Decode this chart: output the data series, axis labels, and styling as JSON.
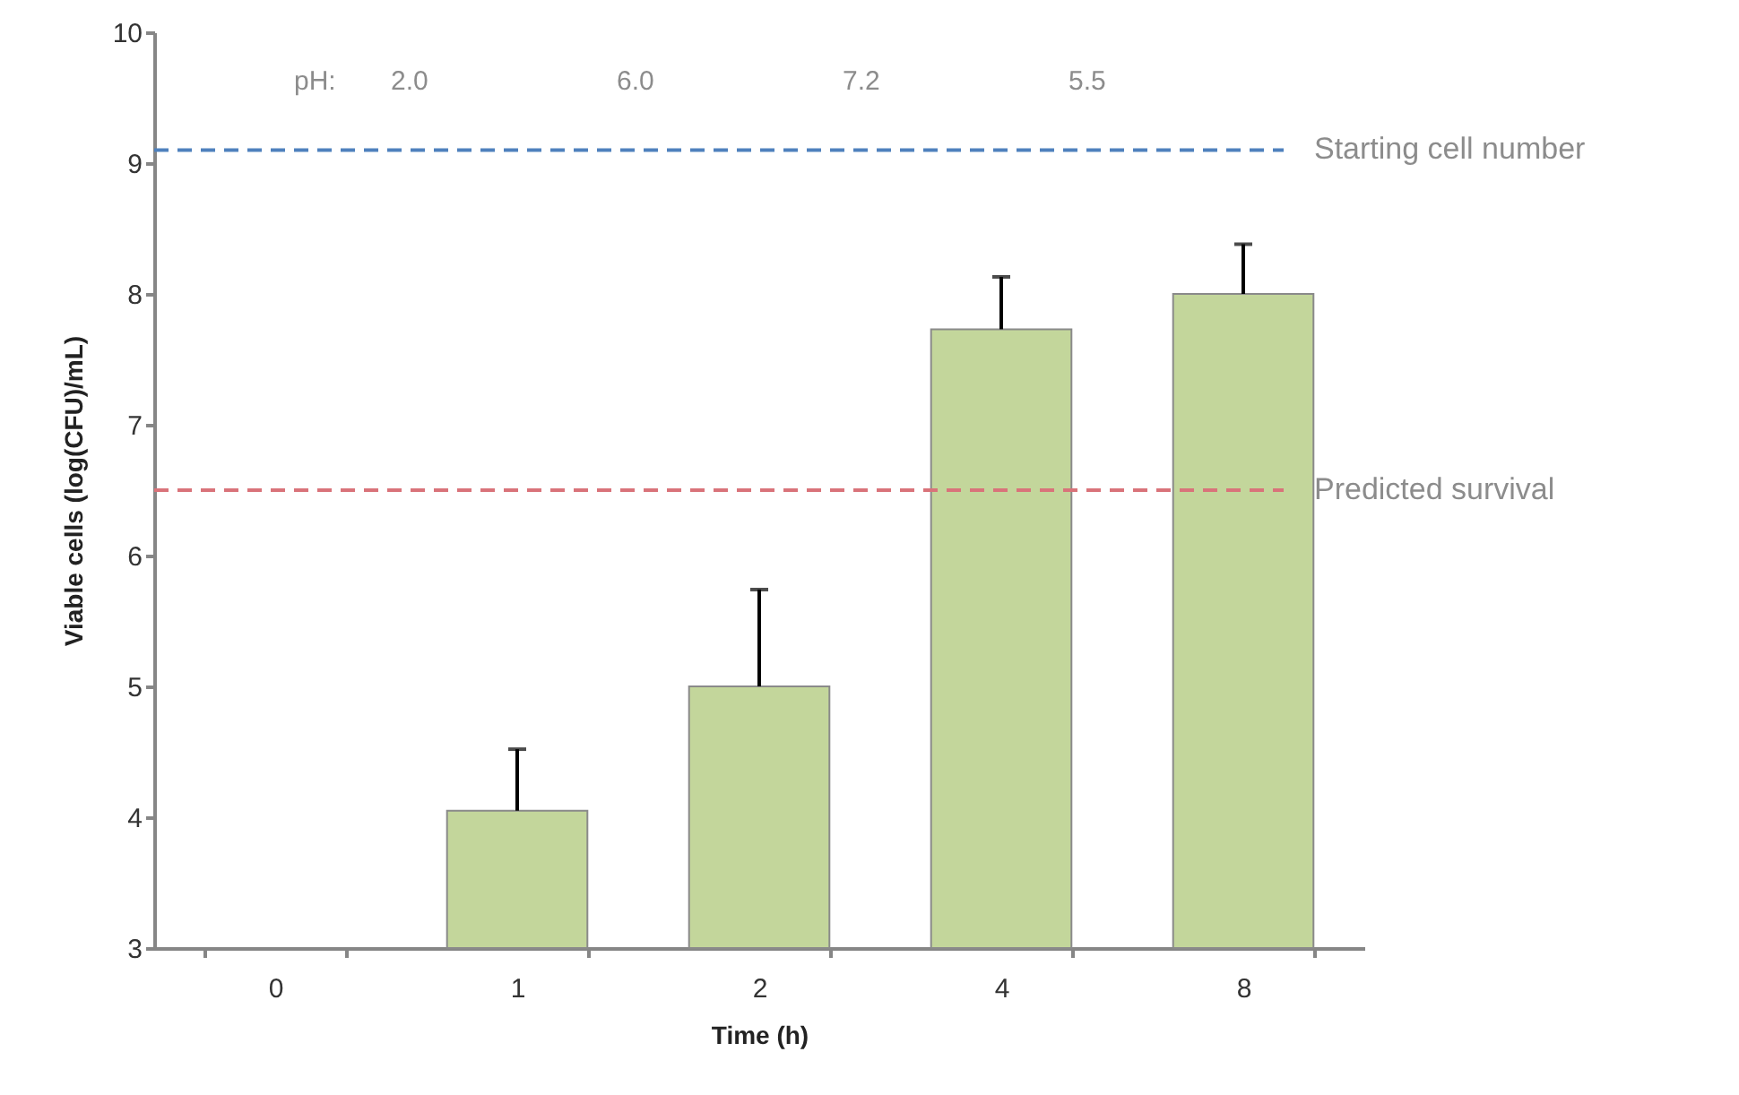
{
  "chart_data": {
    "type": "bar",
    "xlabel": "Time (h)",
    "ylabel": "Viable cells (log(CFU)/mL)",
    "categories": [
      "0",
      "1",
      "2",
      "4",
      "8"
    ],
    "values": [
      null,
      4.05,
      5.0,
      7.73,
      8.0
    ],
    "errors": [
      null,
      [
        4.05,
        4.52
      ],
      [
        5.0,
        5.74
      ],
      [
        7.73,
        8.13
      ],
      [
        8.0,
        8.38
      ]
    ],
    "color": "#c3d69b",
    "ylim": [
      3,
      10
    ],
    "yticks": [
      3,
      4,
      5,
      6,
      7,
      8,
      9,
      10
    ],
    "ref_lines": [
      {
        "axis": "y",
        "value": 9.1,
        "label": "Starting cell number",
        "color": "#4f81bd",
        "line_style": "dashed"
      },
      {
        "axis": "y",
        "value": 6.5,
        "label": "Predicted survival",
        "color": "#d9737a",
        "line_style": "dashed"
      }
    ],
    "annotations": [
      "pH:",
      "2.0",
      "6.0",
      "7.2",
      "5.5"
    ]
  }
}
